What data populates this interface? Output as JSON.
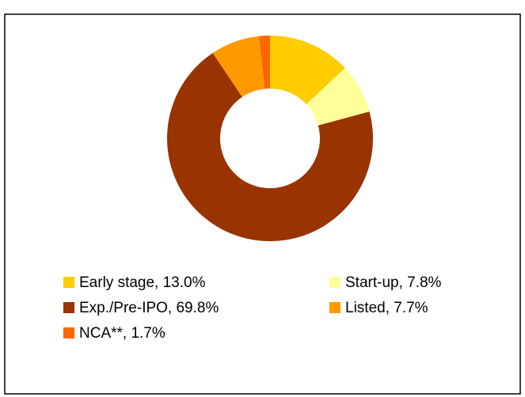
{
  "chart_data": {
    "type": "donut",
    "categories": [
      "Early stage, 13.0%",
      "Start-up, 7.8%",
      "Exp./Pre-IPO, 69.8%",
      "Listed, 7.7%",
      "NCA**, 1.7%"
    ],
    "values": [
      13.0,
      7.8,
      69.8,
      7.7,
      1.7
    ],
    "colors": [
      "#ffcc00",
      "#ffff99",
      "#993300",
      "#ff9900",
      "#ff6600"
    ]
  }
}
